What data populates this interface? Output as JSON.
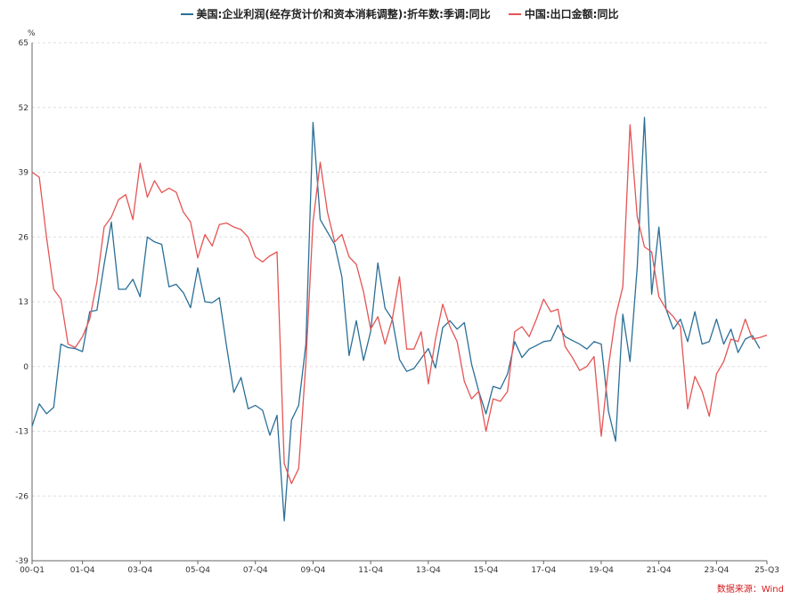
{
  "chart_data": {
    "type": "line",
    "unit": "%",
    "ylim": [
      -39,
      65
    ],
    "yticks": [
      65,
      52,
      39,
      26,
      13,
      0,
      -13,
      -26,
      -39
    ],
    "x_range": [
      "00-Q1",
      "25-Q3"
    ],
    "xticks": [
      "00-Q1",
      "01-Q4",
      "03-Q4",
      "05-Q4",
      "07-Q4",
      "09-Q4",
      "11-Q4",
      "13-Q4",
      "15-Q4",
      "17-Q4",
      "19-Q4",
      "21-Q4",
      "23-Q4",
      "25-Q3"
    ],
    "grid": "horizontal dashed",
    "legend_position": "top",
    "series": [
      {
        "name": "美国:企业利润(经存货计价和资本消耗调整):折年数:季调:同比",
        "color": "#2a6f97",
        "x": [
          "00-Q1",
          "00-Q2",
          "00-Q3",
          "00-Q4",
          "01-Q1",
          "01-Q2",
          "01-Q3",
          "01-Q4",
          "02-Q1",
          "02-Q2",
          "02-Q3",
          "02-Q4",
          "03-Q1",
          "03-Q2",
          "03-Q3",
          "03-Q4",
          "04-Q1",
          "04-Q2",
          "04-Q3",
          "04-Q4",
          "05-Q1",
          "05-Q2",
          "05-Q3",
          "05-Q4",
          "06-Q1",
          "06-Q2",
          "06-Q3",
          "06-Q4",
          "07-Q1",
          "07-Q2",
          "07-Q3",
          "07-Q4",
          "08-Q1",
          "08-Q2",
          "08-Q3",
          "08-Q4",
          "09-Q1",
          "09-Q2",
          "09-Q3",
          "09-Q4",
          "10-Q1",
          "10-Q2",
          "10-Q3",
          "10-Q4",
          "11-Q1",
          "11-Q2",
          "11-Q3",
          "11-Q4",
          "12-Q1",
          "12-Q2",
          "12-Q3",
          "12-Q4",
          "13-Q1",
          "13-Q2",
          "13-Q3",
          "13-Q4",
          "14-Q1",
          "14-Q2",
          "14-Q3",
          "14-Q4",
          "15-Q1",
          "15-Q2",
          "15-Q3",
          "15-Q4",
          "16-Q1",
          "16-Q2",
          "16-Q3",
          "16-Q4",
          "17-Q1",
          "17-Q2",
          "17-Q3",
          "17-Q4",
          "18-Q1",
          "18-Q2",
          "18-Q3",
          "18-Q4",
          "19-Q1",
          "19-Q2",
          "19-Q3",
          "19-Q4",
          "20-Q1",
          "20-Q2",
          "20-Q3",
          "20-Q4",
          "21-Q1",
          "21-Q2",
          "21-Q3",
          "21-Q4",
          "22-Q1",
          "22-Q2",
          "22-Q3",
          "22-Q4",
          "23-Q1",
          "23-Q2",
          "23-Q3",
          "23-Q4",
          "24-Q1",
          "24-Q2",
          "24-Q3",
          "24-Q4",
          "25-Q1",
          "25-Q2"
        ],
        "values": [
          -12.0,
          -7.5,
          -9.5,
          -8.2,
          4.5,
          3.8,
          3.6,
          3.0,
          11.0,
          11.3,
          20.5,
          29.0,
          15.5,
          15.5,
          17.5,
          14.0,
          26.0,
          25.0,
          24.5,
          16.0,
          16.5,
          14.8,
          11.8,
          19.8,
          13.0,
          12.8,
          13.8,
          4.0,
          -5.2,
          -2.2,
          -8.5,
          -7.8,
          -8.8,
          -13.8,
          -9.8,
          -31.0,
          -10.8,
          -7.8,
          4.5,
          49.0,
          29.5,
          27.0,
          24.5,
          18.0,
          2.2,
          9.2,
          1.2,
          7.0,
          20.8,
          11.7,
          9.5,
          1.4,
          -1.0,
          -0.4,
          1.6,
          3.6,
          -0.3,
          7.8,
          9.2,
          7.5,
          8.8,
          0.5,
          -5.0,
          -9.5,
          -4.0,
          -4.5,
          -1.5,
          5.0,
          1.8,
          3.5,
          4.2,
          5.0,
          5.2,
          8.3,
          6.0,
          5.2,
          4.5,
          3.5,
          5.0,
          4.5,
          -9.0,
          -15.0,
          10.5,
          1.0,
          20.0,
          50.0,
          14.5,
          28.0,
          11.5,
          7.5,
          9.5,
          5.0,
          11.0,
          4.5,
          5.0,
          9.5,
          4.5,
          7.5,
          2.8,
          5.5,
          6.2,
          3.6
        ]
      },
      {
        "name": "中国:出口金额:同比",
        "color": "#e55454",
        "x": [
          "00-Q1",
          "00-Q2",
          "00-Q3",
          "00-Q4",
          "01-Q1",
          "01-Q2",
          "01-Q3",
          "01-Q4",
          "02-Q1",
          "02-Q2",
          "02-Q3",
          "02-Q4",
          "03-Q1",
          "03-Q2",
          "03-Q3",
          "03-Q4",
          "04-Q1",
          "04-Q2",
          "04-Q3",
          "04-Q4",
          "05-Q1",
          "05-Q2",
          "05-Q3",
          "05-Q4",
          "06-Q1",
          "06-Q2",
          "06-Q3",
          "06-Q4",
          "07-Q1",
          "07-Q2",
          "07-Q3",
          "07-Q4",
          "08-Q1",
          "08-Q2",
          "08-Q3",
          "08-Q4",
          "09-Q1",
          "09-Q2",
          "09-Q3",
          "09-Q4",
          "10-Q1",
          "10-Q2",
          "10-Q3",
          "10-Q4",
          "11-Q1",
          "11-Q2",
          "11-Q3",
          "11-Q4",
          "12-Q1",
          "12-Q2",
          "12-Q3",
          "12-Q4",
          "13-Q1",
          "13-Q2",
          "13-Q3",
          "13-Q4",
          "14-Q1",
          "14-Q2",
          "14-Q3",
          "14-Q4",
          "15-Q1",
          "15-Q2",
          "15-Q3",
          "15-Q4",
          "16-Q1",
          "16-Q2",
          "16-Q3",
          "16-Q4",
          "17-Q1",
          "17-Q2",
          "17-Q3",
          "17-Q4",
          "18-Q1",
          "18-Q2",
          "18-Q3",
          "18-Q4",
          "19-Q1",
          "19-Q2",
          "19-Q3",
          "19-Q4",
          "20-Q1",
          "20-Q2",
          "20-Q3",
          "20-Q4",
          "21-Q1",
          "21-Q2",
          "21-Q3",
          "21-Q4",
          "22-Q1",
          "22-Q2",
          "22-Q3",
          "22-Q4",
          "23-Q1",
          "23-Q2",
          "23-Q3",
          "23-Q4",
          "24-Q1",
          "24-Q2",
          "24-Q3",
          "24-Q4",
          "25-Q1",
          "25-Q2",
          "25-Q3"
        ],
        "values": [
          39.0,
          38.0,
          26.0,
          15.5,
          13.5,
          4.5,
          3.8,
          6.0,
          9.5,
          17.0,
          28.0,
          30.0,
          33.5,
          34.5,
          29.5,
          40.8,
          34.0,
          37.3,
          34.9,
          35.8,
          35.0,
          31.0,
          29.0,
          21.8,
          26.5,
          24.2,
          28.5,
          28.8,
          28.0,
          27.5,
          26.0,
          22.0,
          21.0,
          22.2,
          23.0,
          -19.5,
          -23.5,
          -20.5,
          0.8,
          29.0,
          41.0,
          31.0,
          25.0,
          26.5,
          22.0,
          20.5,
          15.0,
          7.5,
          10.0,
          4.5,
          9.5,
          18.0,
          3.5,
          3.5,
          7.0,
          -3.5,
          5.5,
          12.5,
          8.0,
          5.0,
          -3.0,
          -6.5,
          -5.0,
          -13.0,
          -6.5,
          -7.0,
          -5.0,
          7.0,
          8.0,
          6.0,
          9.5,
          13.5,
          11.0,
          11.5,
          4.0,
          1.8,
          -0.8,
          0.0,
          2.0,
          -14.0,
          0.0,
          10.0,
          16.0,
          48.5,
          30.0,
          24.0,
          23.0,
          14.0,
          11.5,
          10.0,
          8.0,
          -8.5,
          -2.0,
          -5.0,
          -10.0,
          -1.5,
          1.0,
          5.5,
          5.0,
          9.5,
          5.5,
          5.8,
          6.3
        ]
      }
    ]
  },
  "legend": {
    "items": [
      {
        "label": "美国:企业利润(经存货计价和资本消耗调整):折年数:季调:同比",
        "color": "#2a6f97"
      },
      {
        "label": "中国:出口金额:同比",
        "color": "#e55454"
      }
    ]
  },
  "unit_label": "%",
  "source": "数据来源：Wind"
}
